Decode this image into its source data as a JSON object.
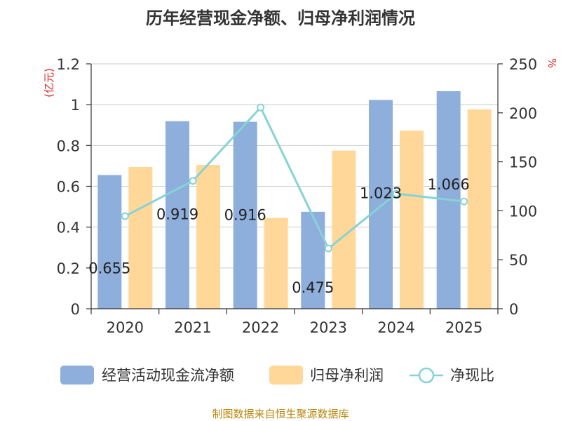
{
  "chart_data": {
    "type": "bar",
    "title": "历年经营现金净额、归母净利润情况",
    "categories": [
      "2020",
      "2021",
      "2022",
      "2023",
      "2024",
      "2025"
    ],
    "series": [
      {
        "name": "经营活动现金流净额",
        "type": "bar",
        "axis": "left",
        "color": "#8eaedb",
        "values": [
          0.655,
          0.919,
          0.916,
          0.475,
          1.023,
          1.066
        ],
        "data_labels": [
          "0.655",
          "0.919",
          "0.916",
          "0.475",
          "1.023",
          "1.066"
        ]
      },
      {
        "name": "归母净利润",
        "type": "bar",
        "axis": "left",
        "color": "#ffd899",
        "values": [
          0.695,
          0.705,
          0.445,
          0.775,
          0.873,
          0.977
        ]
      },
      {
        "name": "净现比",
        "type": "line",
        "axis": "right",
        "color": "#86d3d6",
        "values": [
          94.5,
          130.5,
          205.5,
          61.5,
          117.5,
          109.5
        ]
      }
    ],
    "y_left": {
      "label": "(亿元)",
      "ylim": [
        0,
        1.2
      ],
      "ticks": [
        "0",
        "0.2",
        "0.4",
        "0.6",
        "0.8",
        "1",
        "1.2"
      ]
    },
    "y_right": {
      "label": "%",
      "ylim": [
        0,
        250
      ],
      "ticks": [
        "0",
        "50",
        "100",
        "150",
        "200",
        "250"
      ]
    },
    "legend_position": "bottom",
    "grid": true
  },
  "source": "制图数据来自恒生聚源数据库"
}
